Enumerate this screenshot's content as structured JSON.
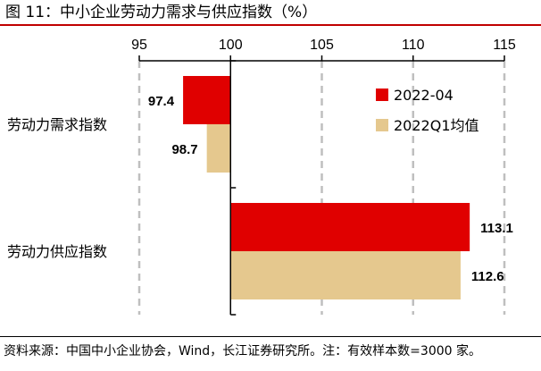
{
  "title": "图  11：中小企业劳动力需求与供应指数（%）",
  "source": "资料来源：中国中小企业协会，Wind，长江证券研究所。注：有效样本数=3000 家。",
  "colors": {
    "series1": "#e00000",
    "series2": "#e5c88e",
    "grid": "#bfbfbf",
    "axis": "#000000",
    "title_rule": "#c00000"
  },
  "chart_data": {
    "type": "bar",
    "orientation": "horizontal",
    "categories": [
      "劳动力需求指数",
      "劳动力供应指数"
    ],
    "series": [
      {
        "name": "2022-04",
        "values": [
          97.4,
          113.1
        ],
        "labels": [
          "97.4",
          "113.1"
        ]
      },
      {
        "name": "2022Q1均值",
        "values": [
          98.7,
          112.6
        ],
        "labels": [
          "98.7",
          "112.6"
        ]
      }
    ],
    "baseline": 100,
    "xlim": [
      95,
      115
    ],
    "xticks": [
      95,
      100,
      105,
      110,
      115
    ],
    "xtick_labels": [
      "95",
      "100",
      "105",
      "110",
      "115"
    ],
    "xaxis_position": "top",
    "grid": "vertical dashed",
    "legend_position": "top-right"
  }
}
